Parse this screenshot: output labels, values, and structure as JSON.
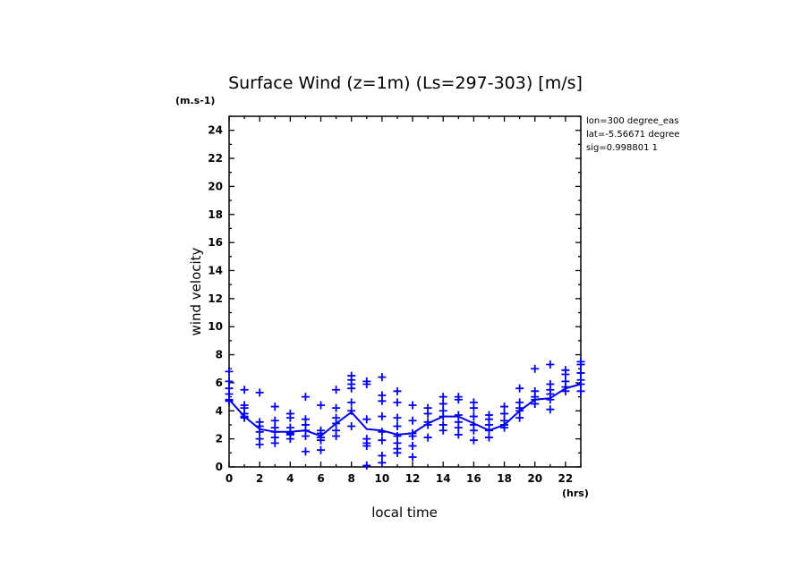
{
  "chart_data": {
    "type": "scatter",
    "title": "Surface Wind (z=1m) (Ls=297-303) [m/s]",
    "xlabel": "local time",
    "ylabel": "wind velocity",
    "x_unit": "(hrs)",
    "y_unit": "(m.s-1)",
    "xlim": [
      0,
      23
    ],
    "ylim": [
      0,
      25
    ],
    "x_ticks": [
      0,
      2,
      4,
      6,
      8,
      10,
      12,
      14,
      16,
      18,
      20,
      22
    ],
    "y_ticks": [
      0,
      2,
      4,
      6,
      8,
      10,
      12,
      14,
      16,
      18,
      20,
      22,
      24
    ],
    "grid": false,
    "info_lines": [
      "lon=300 degree_eas",
      "lat=-5.56671 degree",
      "sig=0.998801 1"
    ],
    "color": "#0000ee",
    "mean_line": {
      "x": [
        0,
        1,
        2,
        3,
        4,
        5,
        6,
        7,
        8,
        9,
        10,
        11,
        12,
        13,
        14,
        15,
        16,
        17,
        18,
        19,
        20,
        21,
        22,
        23
      ],
      "y": [
        4.8,
        3.6,
        2.7,
        2.5,
        2.5,
        2.6,
        2.2,
        3.1,
        3.9,
        2.7,
        2.6,
        2.3,
        2.4,
        3.1,
        3.6,
        3.6,
        3.1,
        2.6,
        3.0,
        4.0,
        4.8,
        4.9,
        5.6,
        5.9
      ]
    },
    "points": [
      [
        0,
        6.8
      ],
      [
        0,
        6.1
      ],
      [
        0,
        5.6
      ],
      [
        0,
        5.2
      ],
      [
        0,
        4.8
      ],
      [
        0,
        4.7
      ],
      [
        1,
        5.5
      ],
      [
        1,
        4.4
      ],
      [
        1,
        4.2
      ],
      [
        1,
        3.8
      ],
      [
        1,
        3.6
      ],
      [
        1,
        3.5
      ],
      [
        2,
        5.3
      ],
      [
        2,
        3.2
      ],
      [
        2,
        2.9
      ],
      [
        2,
        2.5
      ],
      [
        2,
        2.0
      ],
      [
        2,
        1.6
      ],
      [
        3,
        4.3
      ],
      [
        3,
        3.3
      ],
      [
        3,
        2.8
      ],
      [
        3,
        2.5
      ],
      [
        3,
        2.1
      ],
      [
        3,
        1.7
      ],
      [
        4,
        3.8
      ],
      [
        4,
        3.5
      ],
      [
        4,
        2.8
      ],
      [
        4,
        2.4
      ],
      [
        4,
        2.3
      ],
      [
        4,
        2.0
      ],
      [
        5,
        5.0
      ],
      [
        5,
        3.4
      ],
      [
        5,
        3.0
      ],
      [
        5,
        2.6
      ],
      [
        5,
        2.2
      ],
      [
        5,
        1.1
      ],
      [
        6,
        4.4
      ],
      [
        6,
        2.6
      ],
      [
        6,
        2.4
      ],
      [
        6,
        2.1
      ],
      [
        6,
        1.9
      ],
      [
        6,
        1.2
      ],
      [
        7,
        5.5
      ],
      [
        7,
        4.2
      ],
      [
        7,
        3.5
      ],
      [
        7,
        3.1
      ],
      [
        7,
        2.6
      ],
      [
        7,
        2.2
      ],
      [
        8,
        6.5
      ],
      [
        8,
        6.2
      ],
      [
        8,
        5.9
      ],
      [
        8,
        5.6
      ],
      [
        8,
        4.6
      ],
      [
        8,
        4.0
      ],
      [
        8,
        2.9
      ],
      [
        9,
        6.1
      ],
      [
        9,
        5.9
      ],
      [
        9,
        3.4
      ],
      [
        9,
        2.0
      ],
      [
        9,
        1.7
      ],
      [
        9,
        1.5
      ],
      [
        9,
        0.1
      ],
      [
        10,
        6.4
      ],
      [
        10,
        5.1
      ],
      [
        10,
        4.7
      ],
      [
        10,
        3.6
      ],
      [
        10,
        2.5
      ],
      [
        10,
        1.9
      ],
      [
        10,
        0.8
      ],
      [
        10,
        0.3
      ],
      [
        11,
        5.4
      ],
      [
        11,
        4.6
      ],
      [
        11,
        3.5
      ],
      [
        11,
        2.9
      ],
      [
        11,
        2.2
      ],
      [
        11,
        1.7
      ],
      [
        11,
        1.3
      ],
      [
        11,
        1.0
      ],
      [
        12,
        4.4
      ],
      [
        12,
        3.3
      ],
      [
        12,
        2.4
      ],
      [
        12,
        2.2
      ],
      [
        12,
        1.5
      ],
      [
        12,
        0.7
      ],
      [
        13,
        4.2
      ],
      [
        13,
        3.8
      ],
      [
        13,
        3.2
      ],
      [
        13,
        3.0
      ],
      [
        13,
        2.1
      ],
      [
        14,
        5.0
      ],
      [
        14,
        4.5
      ],
      [
        14,
        4.0
      ],
      [
        14,
        3.6
      ],
      [
        14,
        3.0
      ],
      [
        14,
        2.6
      ],
      [
        15,
        5.0
      ],
      [
        15,
        4.8
      ],
      [
        15,
        3.7
      ],
      [
        15,
        3.2
      ],
      [
        15,
        2.8
      ],
      [
        15,
        2.3
      ],
      [
        16,
        4.6
      ],
      [
        16,
        4.2
      ],
      [
        16,
        3.6
      ],
      [
        16,
        3.0
      ],
      [
        16,
        2.6
      ],
      [
        16,
        1.9
      ],
      [
        17,
        3.7
      ],
      [
        17,
        3.4
      ],
      [
        17,
        3.0
      ],
      [
        17,
        2.6
      ],
      [
        17,
        2.1
      ],
      [
        18,
        4.3
      ],
      [
        18,
        3.8
      ],
      [
        18,
        3.3
      ],
      [
        18,
        3.0
      ],
      [
        18,
        2.8
      ],
      [
        19,
        5.6
      ],
      [
        19,
        4.6
      ],
      [
        19,
        4.2
      ],
      [
        19,
        4.0
      ],
      [
        19,
        3.5
      ],
      [
        20,
        7.0
      ],
      [
        20,
        5.4
      ],
      [
        20,
        5.0
      ],
      [
        20,
        4.8
      ],
      [
        20,
        4.5
      ],
      [
        21,
        7.3
      ],
      [
        21,
        5.9
      ],
      [
        21,
        5.5
      ],
      [
        21,
        5.2
      ],
      [
        21,
        4.8
      ],
      [
        21,
        4.1
      ],
      [
        22,
        6.9
      ],
      [
        22,
        6.6
      ],
      [
        22,
        6.1
      ],
      [
        22,
        5.7
      ],
      [
        22,
        5.4
      ],
      [
        23,
        7.5
      ],
      [
        23,
        7.3
      ],
      [
        23,
        6.7
      ],
      [
        23,
        6.2
      ],
      [
        23,
        5.9
      ],
      [
        23,
        5.4
      ]
    ]
  }
}
